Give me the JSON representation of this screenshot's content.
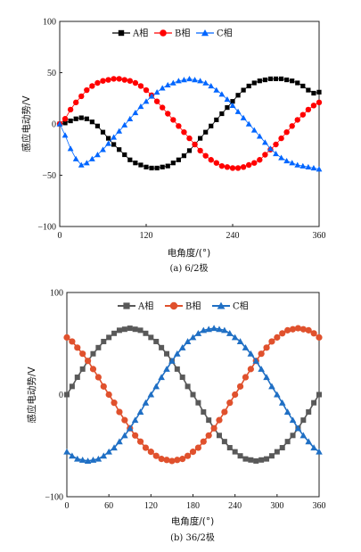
{
  "chart_data": [
    {
      "type": "line",
      "caption": "(a) 6/2极",
      "xlabel": "电角度/(°)",
      "ylabel": "感应电动势/V",
      "xlim": [
        0,
        360
      ],
      "ylim": [
        -100,
        100
      ],
      "xticks": [
        0,
        120,
        240,
        360
      ],
      "yticks": [
        -100,
        -50,
        0,
        50,
        100
      ],
      "grid": false,
      "legend": "top-center",
      "x": [
        0,
        7.5,
        15,
        22.5,
        30,
        37.5,
        45,
        52.5,
        60,
        67.5,
        75,
        82.5,
        90,
        97.5,
        105,
        112.5,
        120,
        127.5,
        135,
        142.5,
        150,
        157.5,
        165,
        172.5,
        180,
        187.5,
        195,
        202.5,
        210,
        217.5,
        225,
        232.5,
        240,
        247.5,
        255,
        262.5,
        270,
        277.5,
        285,
        292.5,
        300,
        307.5,
        315,
        322.5,
        330,
        337.5,
        345,
        352.5,
        360
      ],
      "series": [
        {
          "name": "A相",
          "color": "#000000",
          "marker": "square",
          "values": [
            0,
            1,
            3,
            5,
            6,
            5,
            2,
            -2,
            -8,
            -14,
            -20,
            -25,
            -30,
            -35,
            -38,
            -40,
            -42,
            -43,
            -43,
            -42,
            -41,
            -38,
            -35,
            -31,
            -26,
            -20,
            -14,
            -8,
            -2,
            4,
            10,
            16,
            22,
            28,
            33,
            37,
            40,
            42,
            43,
            44,
            44,
            44,
            43,
            42,
            40,
            37,
            33,
            30,
            31
          ]
        },
        {
          "name": "B相",
          "color": "#ff0000",
          "marker": "circle",
          "values": [
            0,
            5,
            14,
            21,
            27,
            33,
            37,
            40,
            42,
            43,
            44,
            44,
            43,
            42,
            40,
            37,
            33,
            28,
            22,
            16,
            10,
            4,
            -2,
            -8,
            -14,
            -20,
            -26,
            -31,
            -35,
            -38,
            -41,
            -42,
            -43,
            -43,
            -42,
            -40,
            -38,
            -35,
            -30,
            -25,
            -20,
            -14,
            -8,
            -2,
            4,
            9,
            14,
            18,
            21
          ]
        },
        {
          "name": "C相",
          "color": "#0066ff",
          "marker": "triangle",
          "values": [
            0,
            -11,
            -24,
            -34,
            -40,
            -38,
            -34,
            -30,
            -25,
            -19,
            -13,
            -7,
            -1,
            5,
            11,
            17,
            22,
            27,
            31,
            35,
            38,
            40,
            42,
            43,
            44,
            43,
            42,
            40,
            37,
            33,
            29,
            24,
            18,
            12,
            6,
            0,
            -6,
            -12,
            -18,
            -24,
            -29,
            -33,
            -36,
            -38,
            -40,
            -41,
            -42,
            -43,
            -44
          ]
        }
      ]
    },
    {
      "type": "line",
      "caption": "(b) 36/2极",
      "xlabel": "电角度/(°)",
      "ylabel": "感应电动势/V",
      "xlim": [
        0,
        360
      ],
      "ylim": [
        -100,
        100
      ],
      "xticks": [
        0,
        60,
        120,
        180,
        240,
        300,
        360
      ],
      "yticks": [
        -100,
        0,
        100
      ],
      "grid": false,
      "legend": "top-center",
      "x": [
        0,
        7.5,
        15,
        22.5,
        30,
        37.5,
        45,
        52.5,
        60,
        67.5,
        75,
        82.5,
        90,
        97.5,
        105,
        112.5,
        120,
        127.5,
        135,
        142.5,
        150,
        157.5,
        165,
        172.5,
        180,
        187.5,
        195,
        202.5,
        210,
        217.5,
        225,
        232.5,
        240,
        247.5,
        255,
        262.5,
        270,
        277.5,
        285,
        292.5,
        300,
        307.5,
        315,
        322.5,
        330,
        337.5,
        345,
        352.5,
        360
      ],
      "series": [
        {
          "name": "A相",
          "color": "#595959",
          "marker": "square",
          "values": [
            0,
            8,
            17,
            25,
            33,
            40,
            46,
            52,
            56,
            60,
            63,
            64,
            65,
            64,
            63,
            60,
            56,
            52,
            46,
            40,
            33,
            25,
            17,
            8,
            0,
            -8,
            -17,
            -25,
            -33,
            -40,
            -46,
            -52,
            -56,
            -60,
            -63,
            -64,
            -65,
            -64,
            -63,
            -60,
            -56,
            -52,
            -46,
            -40,
            -33,
            -25,
            -17,
            -8,
            0
          ]
        },
        {
          "name": "B相",
          "color": "#e0512d",
          "marker": "circle",
          "values": [
            56,
            52,
            46,
            40,
            33,
            25,
            17,
            8,
            0,
            -8,
            -17,
            -25,
            -33,
            -40,
            -46,
            -52,
            -56,
            -60,
            -63,
            -64,
            -65,
            -64,
            -63,
            -60,
            -56,
            -52,
            -46,
            -40,
            -33,
            -25,
            -17,
            -8,
            0,
            8,
            17,
            25,
            33,
            40,
            46,
            52,
            56,
            60,
            63,
            64,
            65,
            64,
            63,
            60,
            56
          ]
        },
        {
          "name": "C相",
          "color": "#1f6fc4",
          "marker": "triangle",
          "values": [
            -56,
            -60,
            -63,
            -64,
            -65,
            -64,
            -63,
            -60,
            -56,
            -52,
            -46,
            -40,
            -33,
            -25,
            -17,
            -8,
            0,
            8,
            17,
            25,
            33,
            40,
            46,
            52,
            56,
            60,
            63,
            64,
            65,
            64,
            63,
            60,
            56,
            52,
            46,
            40,
            33,
            25,
            17,
            8,
            0,
            -8,
            -17,
            -25,
            -33,
            -40,
            -46,
            -52,
            -56
          ]
        }
      ]
    }
  ]
}
